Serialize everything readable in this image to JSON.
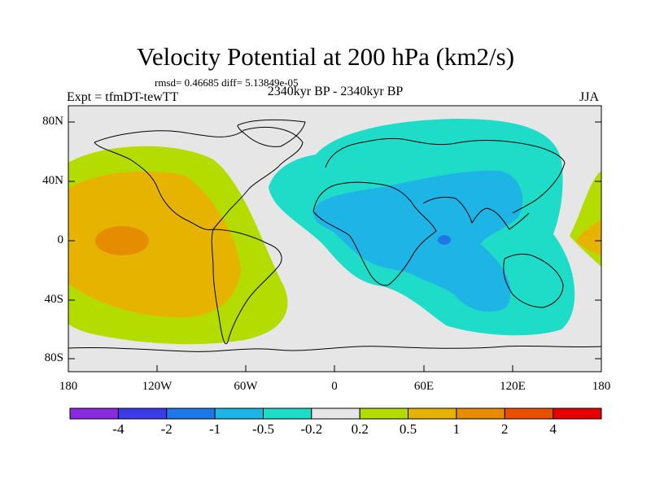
{
  "title": "Velocity Potential at 200 hPa (km2/s)",
  "stats": "rmsd= 0.46685 diff= 5.13849e-05",
  "experiment": "Expt = tfmDT-tewTT",
  "period": "2340kyr BP - 2340kyr BP",
  "season": "JJA",
  "lat_ticks": [
    "80N",
    "40N",
    "0",
    "40S",
    "80S"
  ],
  "lon_ticks": [
    "180",
    "120W",
    "60W",
    "0",
    "60E",
    "120E",
    "180"
  ],
  "colorbar": {
    "colors": [
      "#8a2be2",
      "#3c3ce6",
      "#1e78e6",
      "#1eb4e6",
      "#1edcc8",
      "#e6e6e6",
      "#b4dc00",
      "#e6b400",
      "#e68c00",
      "#e65000",
      "#e60000"
    ],
    "labels": [
      "-4",
      "-2",
      "-1",
      "-0.5",
      "-0.2",
      "0.2",
      "0.5",
      "1",
      "2",
      "4"
    ]
  },
  "map_colors": {
    "background": "#e6e6e6",
    "outline": "#000000"
  }
}
